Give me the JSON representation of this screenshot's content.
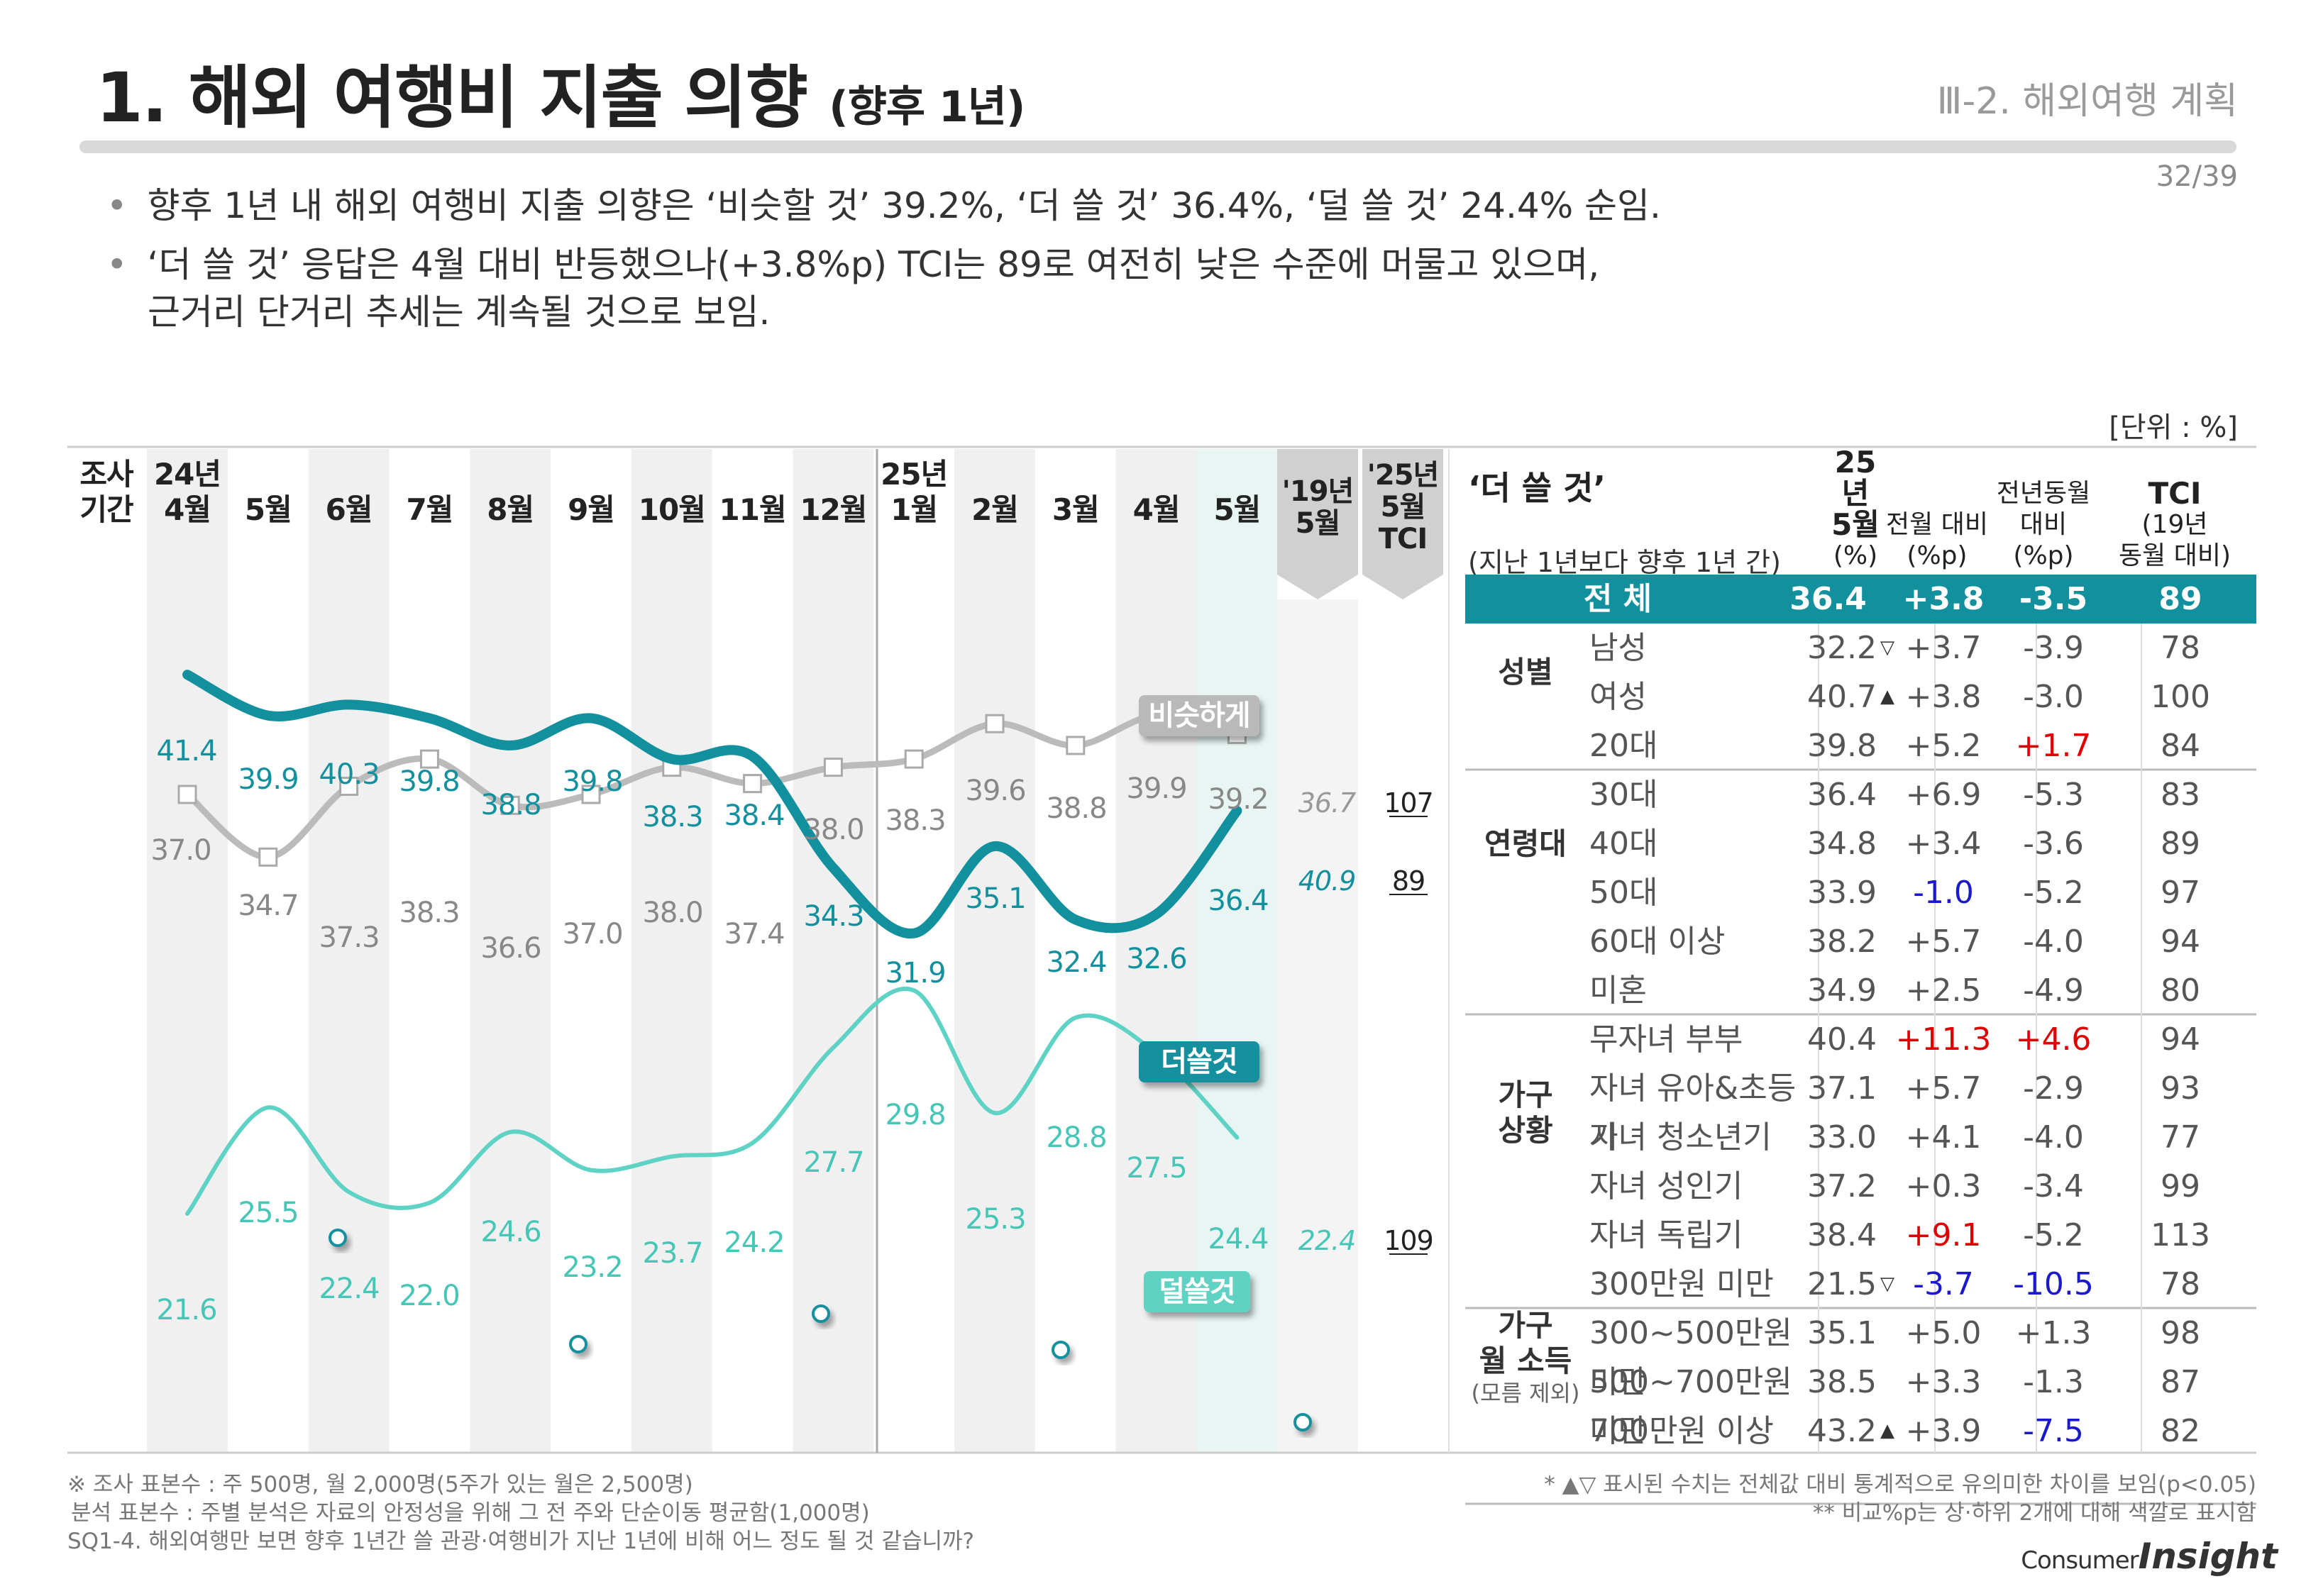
{
  "header": {
    "title": "1. 해외 여행비 지출 의향",
    "title_sub": "(향후 1년)",
    "section": "Ⅲ-2. 해외여행 계획",
    "page": "32/39"
  },
  "bullets": [
    "향후 1년 내 해외 여행비 지출 의향은 ‘비슷할 것’ 39.2%, ‘더 쓸 것’ 36.4%, ‘덜 쓸 것’ 24.4% 순임.",
    "‘더 쓸 것’ 응답은 4월 대비 반등했으나(+3.8%p) TCI는 89로 여전히 낮은 수준에 머물고 있으며,",
    "근거리 단거리 추세는 계속될 것으로 보임."
  ],
  "unit_label": "[단위 : %]",
  "chart_data": {
    "type": "line",
    "period_label": [
      "조사",
      "기간"
    ],
    "categories": [
      "24년 4월",
      "5월",
      "6월",
      "7월",
      "8월",
      "9월",
      "10월",
      "11월",
      "12월",
      "25년 1월",
      "2월",
      "3월",
      "4월",
      "5월"
    ],
    "category_lines": [
      [
        "24년",
        "4월"
      ],
      [
        "5월"
      ],
      [
        "6월"
      ],
      [
        "7월"
      ],
      [
        "8월"
      ],
      [
        "9월"
      ],
      [
        "10월"
      ],
      [
        "11월"
      ],
      [
        "12월"
      ],
      [
        "25년",
        "1월"
      ],
      [
        "2월"
      ],
      [
        "3월"
      ],
      [
        "4월"
      ],
      [
        "5월"
      ]
    ],
    "series": [
      {
        "name": "비슷하게",
        "color": "#bbbbbb",
        "values": [
          37.0,
          34.7,
          37.3,
          38.3,
          36.6,
          37.0,
          38.0,
          37.4,
          38.0,
          38.3,
          39.6,
          38.8,
          39.9,
          39.2
        ]
      },
      {
        "name": "더쓸것",
        "color": "#12909e",
        "values": [
          41.4,
          39.9,
          40.3,
          39.8,
          38.8,
          39.8,
          38.3,
          38.4,
          34.3,
          31.9,
          35.1,
          32.4,
          32.6,
          36.4
        ]
      },
      {
        "name": "덜쓸것",
        "color": "#5ed2c4",
        "values": [
          21.6,
          25.5,
          22.4,
          22.0,
          24.6,
          23.2,
          23.7,
          24.2,
          27.7,
          29.8,
          25.3,
          28.8,
          27.5,
          24.4
        ]
      }
    ],
    "ref_cols": [
      {
        "label": [
          "'19년",
          "5월"
        ]
      },
      {
        "label": [
          "'25년",
          "5월",
          "TCI"
        ]
      }
    ],
    "ref_values": [
      {
        "series": "비슷하게",
        "val_19": "36.7",
        "tci": "107"
      },
      {
        "series": "더쓸것",
        "val_19": "40.9",
        "tci": "89"
      },
      {
        "series": "덜쓸것",
        "val_19": "22.4",
        "tci": "109"
      }
    ],
    "ylim": [
      18,
      46
    ]
  },
  "table": {
    "title": "‘더 쓸 것’",
    "subtitle": "(지난 1년보다 향후 1년 간)",
    "headers": [
      [
        "25년",
        "5월",
        "(%)"
      ],
      [
        "전월 대비",
        "(%p)"
      ],
      [
        "전년동월",
        "대비 (%p)"
      ],
      [
        "TCI",
        "(19년",
        "동월 대비)"
      ]
    ],
    "total": {
      "label": "전 체",
      "pct": "36.4",
      "mom": "+3.8",
      "yoy": "-3.5",
      "tci": "89"
    },
    "groups": [
      {
        "name": [
          "성별"
        ],
        "rows": [
          {
            "label": "남성",
            "pct": "32.2",
            "mark": "▽",
            "mom": "+3.7",
            "yoy": "-3.9",
            "tci": "78"
          },
          {
            "label": "여성",
            "pct": "40.7",
            "mark": "▲",
            "mom": "+3.8",
            "yoy": "-3.0",
            "tci": "100"
          }
        ]
      },
      {
        "name": [
          "연령대"
        ],
        "rows": [
          {
            "label": "20대",
            "pct": "39.8",
            "mom": "+5.2",
            "yoy": "+1.7",
            "yoy_c": "red",
            "tci": "84"
          },
          {
            "label": "30대",
            "pct": "36.4",
            "mom": "+6.9",
            "yoy": "-5.3",
            "tci": "83"
          },
          {
            "label": "40대",
            "pct": "34.8",
            "mom": "+3.4",
            "yoy": "-3.6",
            "tci": "89"
          },
          {
            "label": "50대",
            "pct": "33.9",
            "mom": "-1.0",
            "mom_c": "blue",
            "yoy": "-5.2",
            "tci": "97"
          },
          {
            "label": "60대 이상",
            "pct": "38.2",
            "mom": "+5.7",
            "yoy": "-4.0",
            "tci": "94"
          }
        ]
      },
      {
        "name": [
          "가구",
          "상황"
        ],
        "rows": [
          {
            "label": "미혼",
            "pct": "34.9",
            "mom": "+2.5",
            "yoy": "-4.9",
            "tci": "80"
          },
          {
            "label": "무자녀 부부",
            "pct": "40.4",
            "mom": "+11.3",
            "mom_c": "red",
            "yoy": "+4.6",
            "yoy_c": "red",
            "tci": "94"
          },
          {
            "label": "자녀 유아&초등기",
            "pct": "37.1",
            "mom": "+5.7",
            "yoy": "-2.9",
            "tci": "93"
          },
          {
            "label": "자녀 청소년기",
            "pct": "33.0",
            "mom": "+4.1",
            "yoy": "-4.0",
            "tci": "77"
          },
          {
            "label": "자녀 성인기",
            "pct": "37.2",
            "mom": "+0.3",
            "yoy": "-3.4",
            "tci": "99"
          },
          {
            "label": "자녀 독립기",
            "pct": "38.4",
            "mom": "+9.1",
            "mom_c": "red",
            "yoy": "-5.2",
            "tci": "113"
          }
        ]
      },
      {
        "name": [
          "가구",
          "월 소득",
          "(모름 제외)"
        ],
        "rows": [
          {
            "label": "300만원 미만",
            "pct": "21.5",
            "mark": "▽",
            "mom": "-3.7",
            "mom_c": "blue",
            "yoy": "-10.5",
            "yoy_c": "blue",
            "tci": "78"
          },
          {
            "label": "300~500만원 미만",
            "pct": "35.1",
            "mom": "+5.0",
            "yoy": "+1.3",
            "tci": "98"
          },
          {
            "label": "500~700만원 미만",
            "pct": "38.5",
            "mom": "+3.3",
            "yoy": "-1.3",
            "tci": "87"
          },
          {
            "label": "700만원 이상",
            "pct": "43.2",
            "mark": "▲",
            "mom": "+3.9",
            "yoy": "-7.5",
            "yoy_c": "blue",
            "tci": "82"
          }
        ]
      }
    ]
  },
  "footer": {
    "notes": [
      "※ 조사 표본수 : 주 500명, 월 2,000명(5주가 있는 월은 2,500명)",
      "분석 표본수 : 주별 분석은 자료의 안정성을 위해 그 전 주와 단순이동 평균함(1,000명)",
      "SQ1-4. 해외여행만 보면 향후 1년간 쓸 관광·여행비가 지난 1년에 비해 어느 정도 될 것 같습니까?"
    ],
    "right_notes": [
      "* ▲▽ 표시된 수치는 전체값 대비 통계적으로 유의미한 차이를 보임(p<0.05)",
      "** 비교%p는 상·하위 2개에 대해 색깔로 표시함"
    ],
    "brand": [
      "Consumer",
      "Insight"
    ]
  }
}
